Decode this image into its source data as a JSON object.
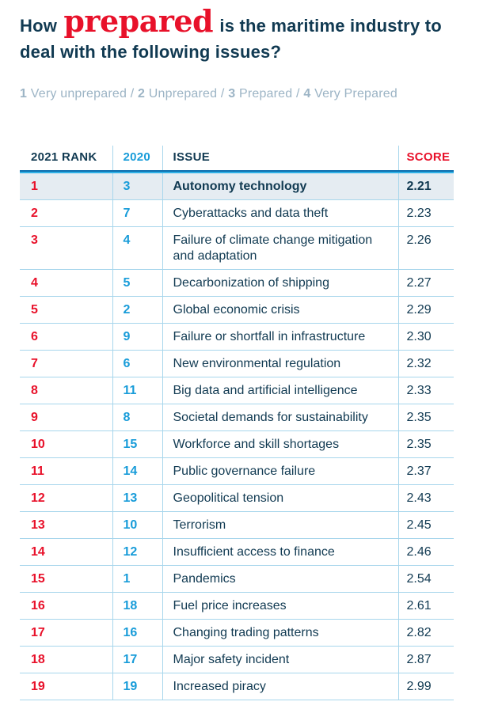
{
  "title": {
    "prefix": "How",
    "highlight": "prepared",
    "suffix": "is the maritime industry to deal with the following issues?"
  },
  "scale_legend": {
    "separator": "/",
    "items": [
      {
        "value": "1",
        "label": "Very unprepared"
      },
      {
        "value": "2",
        "label": "Unprepared"
      },
      {
        "value": "3",
        "label": "Prepared"
      },
      {
        "value": "4",
        "label": "Very Prepared"
      }
    ]
  },
  "chart_data": {
    "type": "table",
    "title": "How prepared is the maritime industry to deal with the following issues?",
    "scale_note": "1 Very unprepared / 2 Unprepared / 3 Prepared / 4 Very Prepared",
    "score_range": [
      1,
      4
    ],
    "columns": [
      {
        "key": "rank2021",
        "label": "2021 RANK"
      },
      {
        "key": "rank2020",
        "label": "2020"
      },
      {
        "key": "issue",
        "label": "ISSUE"
      },
      {
        "key": "score",
        "label": "SCORE"
      }
    ],
    "rows": [
      {
        "rank2021": "1",
        "rank2020": "3",
        "issue": "Autonomy technology",
        "score": "2.21",
        "highlighted": true
      },
      {
        "rank2021": "2",
        "rank2020": "7",
        "issue": "Cyberattacks and data theft",
        "score": "2.23"
      },
      {
        "rank2021": "3",
        "rank2020": "4",
        "issue": "Failure of climate change mitigation and adaptation",
        "score": "2.26"
      },
      {
        "rank2021": "4",
        "rank2020": "5",
        "issue": "Decarbonization of shipping",
        "score": "2.27"
      },
      {
        "rank2021": "5",
        "rank2020": "2",
        "issue": "Global economic crisis",
        "score": "2.29"
      },
      {
        "rank2021": "6",
        "rank2020": "9",
        "issue": "Failure or shortfall in infrastructure",
        "score": "2.30"
      },
      {
        "rank2021": "7",
        "rank2020": "6",
        "issue": "New environmental regulation",
        "score": "2.32"
      },
      {
        "rank2021": "8",
        "rank2020": "11",
        "issue": "Big data and artificial intelligence",
        "score": "2.33"
      },
      {
        "rank2021": "9",
        "rank2020": "8",
        "issue": "Societal demands for sustainability",
        "score": "2.35"
      },
      {
        "rank2021": "10",
        "rank2020": "15",
        "issue": "Workforce and skill shortages",
        "score": "2.35"
      },
      {
        "rank2021": "11",
        "rank2020": "14",
        "issue": "Public governance failure",
        "score": "2.37"
      },
      {
        "rank2021": "12",
        "rank2020": "13",
        "issue": "Geopolitical tension",
        "score": "2.43"
      },
      {
        "rank2021": "13",
        "rank2020": "10",
        "issue": "Terrorism",
        "score": "2.45"
      },
      {
        "rank2021": "14",
        "rank2020": "12",
        "issue": "Insufficient access to finance",
        "score": "2.46"
      },
      {
        "rank2021": "15",
        "rank2020": "1",
        "issue": "Pandemics",
        "score": "2.54"
      },
      {
        "rank2021": "16",
        "rank2020": "18",
        "issue": "Fuel price increases",
        "score": "2.61"
      },
      {
        "rank2021": "17",
        "rank2020": "16",
        "issue": "Changing trading patterns",
        "score": "2.82"
      },
      {
        "rank2021": "18",
        "rank2020": "17",
        "issue": "Major safety incident",
        "score": "2.87"
      },
      {
        "rank2021": "19",
        "rank2020": "19",
        "issue": "Increased piracy",
        "score": "2.99"
      }
    ]
  },
  "colors": {
    "navy": "#113a52",
    "red": "#e8112a",
    "cyan": "#189cd9",
    "legend": "#9cb4c5",
    "line": "#a7d6ec",
    "highlight": "#e5ecf2",
    "ruleTop": "#0d6fae",
    "ruleBottom": "#2fb0e6"
  }
}
